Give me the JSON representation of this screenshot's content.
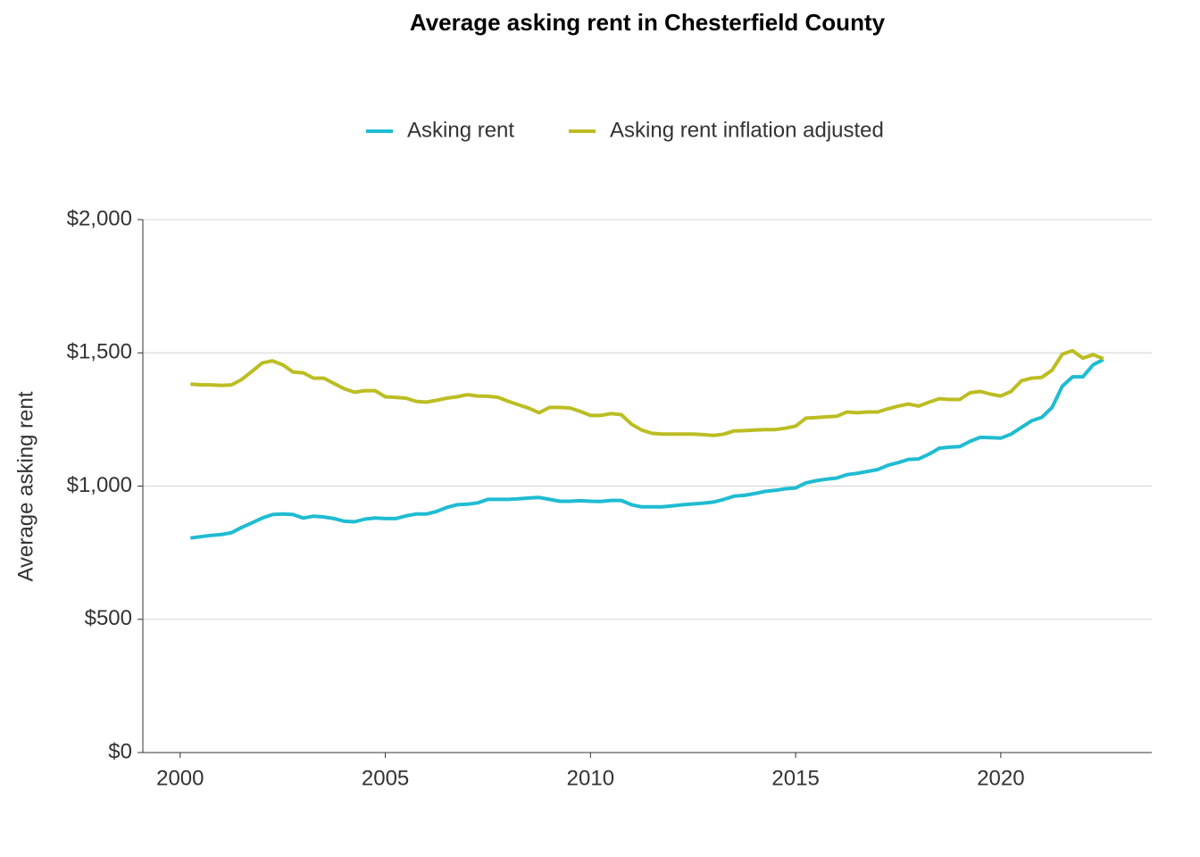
{
  "chart_data": {
    "type": "line",
    "title": "Average asking rent in Chesterfield County",
    "y_label": "Average asking rent",
    "x": [
      2000.25,
      2000.5,
      2000.75,
      2001,
      2001.25,
      2001.5,
      2001.75,
      2002,
      2002.25,
      2002.5,
      2002.75,
      2003,
      2003.25,
      2003.5,
      2003.75,
      2004,
      2004.25,
      2004.5,
      2004.75,
      2005,
      2005.25,
      2005.5,
      2005.75,
      2006,
      2006.25,
      2006.5,
      2006.75,
      2007,
      2007.25,
      2007.5,
      2007.75,
      2008,
      2008.25,
      2008.5,
      2008.75,
      2009,
      2009.25,
      2009.5,
      2009.75,
      2010,
      2010.25,
      2010.5,
      2010.75,
      2011,
      2011.25,
      2011.5,
      2011.75,
      2012,
      2012.25,
      2012.5,
      2012.75,
      2013,
      2013.25,
      2013.5,
      2013.75,
      2014,
      2014.25,
      2014.5,
      2014.75,
      2015,
      2015.25,
      2015.5,
      2015.75,
      2016,
      2016.25,
      2016.5,
      2016.75,
      2017,
      2017.25,
      2017.5,
      2017.75,
      2018,
      2018.25,
      2018.5,
      2018.75,
      2019,
      2019.25,
      2019.5,
      2019.75,
      2020,
      2020.25,
      2020.5,
      2020.75,
      2021,
      2021.25,
      2021.5,
      2021.75,
      2022,
      2022.25,
      2022.5
    ],
    "series": [
      {
        "name": "Asking rent",
        "color": "#1fbcd2",
        "values": [
          805,
          810,
          815,
          818,
          825,
          845,
          862,
          880,
          893,
          895,
          893,
          880,
          887,
          884,
          878,
          868,
          866,
          876,
          880,
          878,
          878,
          888,
          895,
          895,
          905,
          920,
          930,
          932,
          937,
          950,
          950,
          950,
          952,
          955,
          957,
          950,
          943,
          943,
          945,
          943,
          942,
          946,
          946,
          930,
          922,
          922,
          922,
          926,
          930,
          933,
          936,
          940,
          950,
          962,
          965,
          972,
          980,
          984,
          990,
          993,
          1012,
          1020,
          1026,
          1030,
          1043,
          1048,
          1055,
          1062,
          1078,
          1088,
          1100,
          1102,
          1120,
          1142,
          1146,
          1148,
          1168,
          1183,
          1182,
          1180,
          1195,
          1220,
          1245,
          1258,
          1295,
          1375,
          1410,
          1410,
          1455,
          1475
        ]
      },
      {
        "name": "Asking rent inflation adjusted",
        "color": "#bcbd22",
        "values": [
          1383,
          1380,
          1380,
          1378,
          1380,
          1400,
          1430,
          1462,
          1470,
          1455,
          1428,
          1425,
          1405,
          1405,
          1385,
          1365,
          1352,
          1358,
          1358,
          1335,
          1333,
          1330,
          1318,
          1315,
          1322,
          1330,
          1335,
          1343,
          1338,
          1337,
          1333,
          1318,
          1305,
          1292,
          1275,
          1295,
          1295,
          1293,
          1280,
          1265,
          1265,
          1272,
          1268,
          1232,
          1210,
          1198,
          1195,
          1195,
          1195,
          1195,
          1193,
          1190,
          1195,
          1207,
          1208,
          1210,
          1212,
          1212,
          1217,
          1225,
          1255,
          1257,
          1260,
          1262,
          1278,
          1275,
          1278,
          1278,
          1290,
          1300,
          1308,
          1300,
          1315,
          1328,
          1325,
          1325,
          1350,
          1355,
          1345,
          1338,
          1355,
          1395,
          1405,
          1408,
          1435,
          1495,
          1508,
          1480,
          1493,
          1478
        ]
      }
    ],
    "xlim": [
      1999.09,
      2023.68
    ],
    "xticks": [
      2000,
      2005,
      2010,
      2015,
      2020
    ],
    "ylim": [
      0,
      2000
    ],
    "yticks": [
      {
        "value": 0,
        "label": "$0"
      },
      {
        "value": 500,
        "label": "$500"
      },
      {
        "value": 1000,
        "label": "$1,000"
      },
      {
        "value": 1500,
        "label": "$1,500"
      },
      {
        "value": 2000,
        "label": "$2,000"
      }
    ],
    "grid": true
  }
}
